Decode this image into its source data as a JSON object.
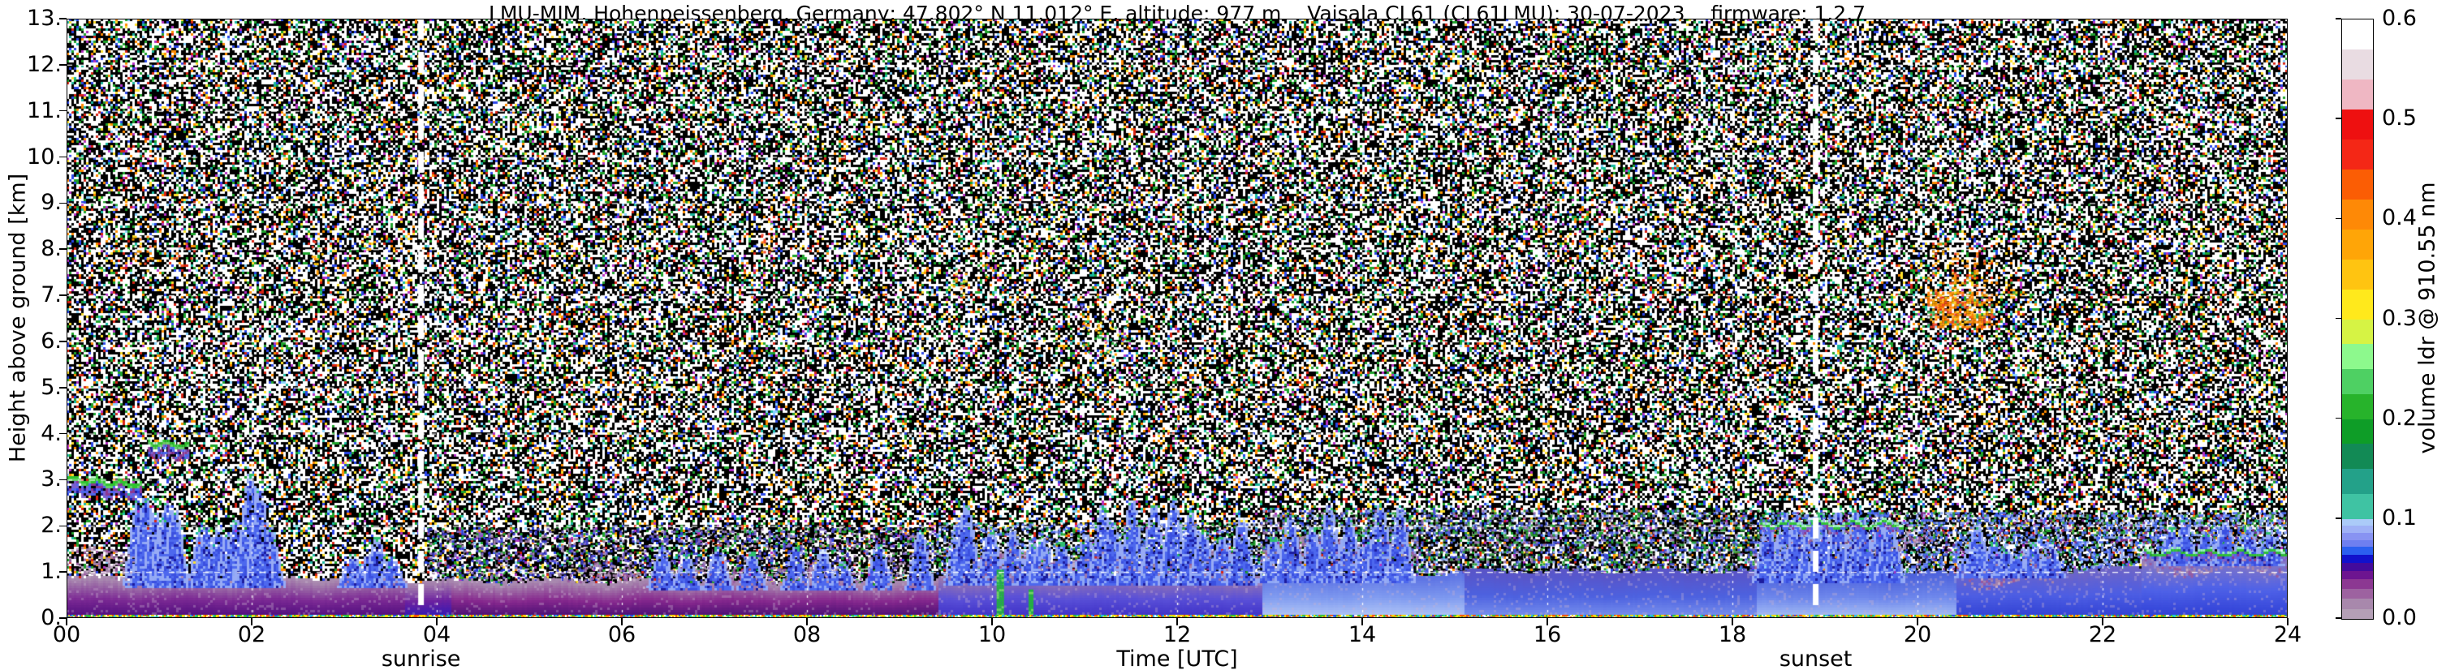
{
  "title": "LMU-MIM, Hohenpeissenberg, Germany; 47.802° N 11.012° E, altitude: 977 m    Vaisala CL61 (CL61LMU): 30-07-2023    firmware: 1.2.7",
  "axes": {
    "y_label": "Height above ground [km]",
    "x_label": "Time [UTC]",
    "y_ticks": [
      "0.",
      "1.",
      "2.",
      "3.",
      "4.",
      "5.",
      "6.",
      "7.",
      "8.",
      "9.",
      "10.",
      "11.",
      "12.",
      "13."
    ],
    "x_ticks": [
      "00",
      "02",
      "04",
      "06",
      "08",
      "10",
      "12",
      "14",
      "16",
      "18",
      "20",
      "22",
      "24"
    ],
    "sunrise_label": "sunrise",
    "sunset_label": "sunset"
  },
  "colorbar": {
    "label": "volume ldr @ 910.55 nm",
    "ticks": [
      "0.0",
      "0.1",
      "0.2",
      "0.3",
      "0.4",
      "0.5",
      "0.6"
    ],
    "vmin": 0.0,
    "vmax": 0.6,
    "segments": [
      {
        "v0": 0.0,
        "v1": 0.01,
        "c": "#b49fb6"
      },
      {
        "v0": 0.01,
        "v1": 0.02,
        "c": "#a888ac"
      },
      {
        "v0": 0.02,
        "v1": 0.03,
        "c": "#9d62a0"
      },
      {
        "v0": 0.03,
        "v1": 0.04,
        "c": "#8c3892"
      },
      {
        "v0": 0.04,
        "v1": 0.048,
        "c": "#6d1590"
      },
      {
        "v0": 0.048,
        "v1": 0.056,
        "c": "#430b9c"
      },
      {
        "v0": 0.056,
        "v1": 0.064,
        "c": "#1111cc"
      },
      {
        "v0": 0.064,
        "v1": 0.072,
        "c": "#2b5ff0"
      },
      {
        "v0": 0.072,
        "v1": 0.079,
        "c": "#6f7ff0"
      },
      {
        "v0": 0.079,
        "v1": 0.086,
        "c": "#8893f2"
      },
      {
        "v0": 0.086,
        "v1": 0.093,
        "c": "#9fb1f6"
      },
      {
        "v0": 0.093,
        "v1": 0.1,
        "c": "#abcbf8"
      },
      {
        "v0": 0.1,
        "v1": 0.125,
        "c": "#3fc3a3"
      },
      {
        "v0": 0.125,
        "v1": 0.15,
        "c": "#23a189"
      },
      {
        "v0": 0.15,
        "v1": 0.175,
        "c": "#128a55"
      },
      {
        "v0": 0.175,
        "v1": 0.2,
        "c": "#0e9d27"
      },
      {
        "v0": 0.2,
        "v1": 0.225,
        "c": "#27b32b"
      },
      {
        "v0": 0.225,
        "v1": 0.25,
        "c": "#4ed063"
      },
      {
        "v0": 0.25,
        "v1": 0.275,
        "c": "#8df98d"
      },
      {
        "v0": 0.275,
        "v1": 0.3,
        "c": "#d6f344"
      },
      {
        "v0": 0.3,
        "v1": 0.33,
        "c": "#ffe91c"
      },
      {
        "v0": 0.33,
        "v1": 0.36,
        "c": "#ffc411"
      },
      {
        "v0": 0.36,
        "v1": 0.39,
        "c": "#ffa507"
      },
      {
        "v0": 0.39,
        "v1": 0.42,
        "c": "#fe8906"
      },
      {
        "v0": 0.42,
        "v1": 0.45,
        "c": "#fb5d04"
      },
      {
        "v0": 0.45,
        "v1": 0.48,
        "c": "#f42716"
      },
      {
        "v0": 0.48,
        "v1": 0.51,
        "c": "#ee1010"
      },
      {
        "v0": 0.51,
        "v1": 0.54,
        "c": "#efb7c3"
      },
      {
        "v0": 0.54,
        "v1": 0.57,
        "c": "#e9dce2"
      },
      {
        "v0": 0.57,
        "v1": 0.6,
        "c": "#ffffff"
      }
    ]
  },
  "chart_data": {
    "type": "heatmap",
    "title": "LMU-MIM, Hohenpeissenberg, Germany; 47.802° N 11.012° E, altitude: 977 m    Vaisala CL61 (CL61LMU): 30-07-2023    firmware: 1.2.7",
    "xlabel": "Time [UTC]",
    "ylabel": "Height above ground [km]",
    "colorbar_label": "volume ldr @ 910.55 nm",
    "x_range": [
      0,
      24
    ],
    "y_range": [
      0,
      13
    ],
    "value_range": [
      0.0,
      0.6
    ],
    "sunrise_utc": 3.83,
    "sunset_utc": 18.9,
    "grid": {
      "x_step": 2,
      "y_step": 1,
      "color": "#ffffff",
      "style": "dashed"
    },
    "noise": {
      "white": 0.38,
      "black": 0.42,
      "palette": [
        {
          "c": "#1fa32c",
          "w": 0.26
        },
        {
          "c": "#2a46e8",
          "w": 0.17
        },
        {
          "c": "#d92313",
          "w": 0.13
        },
        {
          "c": "#ff8c00",
          "w": 0.12
        },
        {
          "c": "#ffe12b",
          "w": 0.1
        },
        {
          "c": "#19b9a0",
          "w": 0.09
        },
        {
          "c": "#b62fc4",
          "w": 0.07
        },
        {
          "c": "#8ad4ff",
          "w": 0.06
        }
      ]
    },
    "overlays": [
      {
        "t0": 3.9,
        "t1": 9.4,
        "h0": 0.7,
        "h1": 1.95,
        "cov": 0.42,
        "colors": [
          {
            "c": "#000000",
            "w": 0.36
          },
          {
            "c": "#3a3acc",
            "w": 0.25
          },
          {
            "c": "#7d64c8",
            "w": 0.14
          },
          {
            "c": "#a583ac",
            "w": 0.12
          },
          {
            "c": "#1fa32c",
            "w": 0.13
          }
        ]
      },
      {
        "t0": 9.4,
        "t1": 12.9,
        "h0": 0.9,
        "h1": 2.05,
        "cov": 0.38,
        "colors": [
          {
            "c": "#000000",
            "w": 0.3
          },
          {
            "c": "#4d68ee",
            "w": 0.3
          },
          {
            "c": "#8fa8f5",
            "w": 0.2
          },
          {
            "c": "#1fa32c",
            "w": 0.2
          }
        ]
      },
      {
        "t0": 12.9,
        "t1": 18.3,
        "h0": 0.95,
        "h1": 2.35,
        "cov": 0.45,
        "colors": [
          {
            "c": "#000000",
            "w": 0.3
          },
          {
            "c": "#4455dd",
            "w": 0.28
          },
          {
            "c": "#2f9e3c",
            "w": 0.22
          },
          {
            "c": "#9a6fae",
            "w": 0.1
          },
          {
            "c": "#8fa8f5",
            "w": 0.1
          }
        ]
      },
      {
        "t0": 18.3,
        "t1": 24,
        "h0": 0.8,
        "h1": 2.3,
        "cov": 0.5,
        "colors": [
          {
            "c": "#4d6ef0",
            "w": 0.38
          },
          {
            "c": "#000000",
            "w": 0.22
          },
          {
            "c": "#8fa8f5",
            "w": 0.2
          },
          {
            "c": "#2f9e3c",
            "w": 0.12
          },
          {
            "c": "#7c2f90",
            "w": 0.08
          }
        ]
      }
    ],
    "boundary_layer": {
      "segments": [
        {
          "t0": 0,
          "t1": 3.65,
          "h": 0.85,
          "cb": "#47077a",
          "cm": "#7d2b95",
          "ct": "#aa8bb0"
        },
        {
          "t0": 3.65,
          "t1": 4.15,
          "h": 0.8,
          "cb": "#2417b8",
          "cm": "#6d21a0",
          "ct": "#a786ae"
        },
        {
          "t0": 4.15,
          "t1": 9.4,
          "h": 0.78,
          "cb": "#3c0a6e",
          "cm": "#86288e",
          "ct": "#a98ab0"
        },
        {
          "t0": 9.4,
          "t1": 12.9,
          "h": 0.9,
          "cb": "#3a2cc4",
          "cm": "#5a50d8",
          "ct": "#9a79ae"
        },
        {
          "t0": 12.9,
          "t1": 15.1,
          "h": 0.95,
          "cb": "#b9cdf8",
          "cm": "#7f9af0",
          "ct": "#5e74e4"
        },
        {
          "t0": 15.1,
          "t1": 18.25,
          "h": 1.0,
          "cb": "#7f97f0",
          "cm": "#4d62e0",
          "ct": "#5a55c8"
        },
        {
          "t0": 18.25,
          "t1": 20.4,
          "h": 0.95,
          "cb": "#aec6f6",
          "cm": "#6e87ec",
          "ct": "#4d62dc"
        },
        {
          "t0": 20.4,
          "t1": 22.4,
          "h": 1.05,
          "cb": "#2e3ed2",
          "cm": "#4d5ee4",
          "ct": "#6e65c8"
        },
        {
          "t0": 22.4,
          "t1": 24.01,
          "h": 1.3,
          "cb": "#2c3cd4",
          "cm": "#4f62e8",
          "ct": "#8a79c0"
        }
      ],
      "caps": [
        {
          "t0": 0,
          "t1": 0.9,
          "h0": 0.85,
          "h1": 1.45,
          "cov": 0.4
        },
        {
          "t0": 5.2,
          "t1": 9.4,
          "h0": 0.78,
          "h1": 1.1,
          "cov": 0.3
        },
        {
          "t0": 9.5,
          "t1": 12.7,
          "h0": 0.95,
          "h1": 1.35,
          "cov": 0.5
        },
        {
          "t0": 12.9,
          "t1": 14.6,
          "h0": 1.15,
          "h1": 1.7,
          "cov": 0.55
        },
        {
          "t0": 18.3,
          "t1": 20.2,
          "h0": 1.5,
          "h1": 1.85,
          "cov": 0.55
        },
        {
          "t0": 20.5,
          "t1": 21.5,
          "h0": 0.75,
          "h1": 1.3,
          "cov": 0.45
        },
        {
          "t0": 22.4,
          "t1": 24,
          "h0": 1.0,
          "h1": 1.35,
          "cov": 0.5
        }
      ],
      "cap_colors": [
        {
          "c": "#a583ac",
          "w": 0.5
        },
        {
          "c": "#9a5a9f",
          "w": 0.3
        },
        {
          "c": "#c4aac6",
          "w": 0.2
        }
      ]
    },
    "layer_lines": [
      {
        "t0": 0,
        "t1": 0.8,
        "ha": 3.03,
        "hb": 2.9
      },
      {
        "t0": 0.88,
        "t1": 1.32,
        "ha": 3.82,
        "hb": 3.76
      }
    ],
    "green_caps": [
      {
        "t0": 18.3,
        "t1": 19.85,
        "h": 2.02
      },
      {
        "t0": 22.45,
        "t1": 24,
        "h": 1.4
      }
    ],
    "plumes": [
      {
        "t0": 0.75,
        "t1": 1.2,
        "n": 6,
        "hmin": 2.0,
        "hmax": 2.6
      },
      {
        "t0": 1.4,
        "t1": 2.25,
        "n": 9,
        "hmin": 1.4,
        "hmax": 2.1
      },
      {
        "t0": 1.95,
        "t1": 2.15,
        "n": 2,
        "hmin": 2.7,
        "hmax": 3.2
      },
      {
        "t0": 3.05,
        "t1": 3.55,
        "n": 4,
        "hmin": 1.2,
        "hmax": 1.75
      },
      {
        "t0": 6.3,
        "t1": 9.3,
        "n": 9,
        "hmin": 1.2,
        "hmax": 1.9
      },
      {
        "t0": 9.5,
        "t1": 12.8,
        "n": 17,
        "hmin": 1.5,
        "hmax": 2.7
      },
      {
        "t0": 13.0,
        "t1": 14.5,
        "n": 8,
        "hmin": 1.7,
        "hmax": 2.55
      },
      {
        "t0": 18.35,
        "t1": 19.8,
        "n": 10,
        "hmin": 2.0,
        "hmax": 2.35
      },
      {
        "t0": 20.45,
        "t1": 21.5,
        "n": 7,
        "hmin": 1.3,
        "hmax": 2.05
      },
      {
        "t0": 22.6,
        "t1": 23.9,
        "n": 6,
        "hmin": 1.55,
        "hmax": 2.1
      }
    ],
    "plume_colors": [
      {
        "c": "#4d68ee",
        "w": 0.45
      },
      {
        "c": "#3b50e0",
        "w": 0.25
      },
      {
        "c": "#8fa8f5",
        "w": 0.2
      },
      {
        "c": "#1c1c9e",
        "w": 0.1
      }
    ],
    "green_columns": [
      {
        "t": 10.08,
        "h": 1.05,
        "w": 0.06
      },
      {
        "t": 10.42,
        "h": 0.62,
        "w": 0.05
      }
    ],
    "clouds": [
      {
        "t0": 0.68,
        "t1": 0.97,
        "h0": 7.5,
        "h1": 8.45,
        "d": 0.5,
        "colors": [
          {
            "c": "#ff9d00",
            "w": 0.3
          },
          {
            "c": "#ff7b00",
            "w": 0.22
          },
          {
            "c": "#f2432b",
            "w": 0.2
          },
          {
            "c": "#ffc40a",
            "w": 0.15
          },
          {
            "c": "#ffffff",
            "w": 0.13
          }
        ]
      },
      {
        "t0": 1.1,
        "t1": 1.38,
        "h0": 7.45,
        "h1": 8.3,
        "d": 0.3,
        "colors": [
          {
            "c": "#f2432b",
            "w": 0.45
          },
          {
            "c": "#ff7b00",
            "w": 0.25
          },
          {
            "c": "#ffc40a",
            "w": 0.15
          },
          {
            "c": "#ffffff",
            "w": 0.15
          }
        ]
      },
      {
        "t0": 2.62,
        "t1": 2.77,
        "h0": 7.35,
        "h1": 8.6,
        "d": 0.5,
        "colors": [
          {
            "c": "#ff9d00",
            "w": 0.4
          },
          {
            "c": "#ff7b00",
            "w": 0.25
          },
          {
            "c": "#f2432b",
            "w": 0.15
          },
          {
            "c": "#ffc40a",
            "w": 0.2
          }
        ]
      },
      {
        "t0": 3.16,
        "t1": 3.34,
        "h0": 7.95,
        "h1": 8.55,
        "d": 0.6,
        "colors": [
          {
            "c": "#2fae4c",
            "w": 0.35
          },
          {
            "c": "#19b9a0",
            "w": 0.15
          },
          {
            "c": "#ff9d00",
            "w": 0.25
          },
          {
            "c": "#f2432b",
            "w": 0.1
          },
          {
            "c": "#ffe12b",
            "w": 0.15
          }
        ]
      },
      {
        "t0": 7.4,
        "t1": 7.63,
        "h0": 7.75,
        "h1": 8.7,
        "d": 0.6,
        "colors": [
          {
            "c": "#ff9d00",
            "w": 0.28
          },
          {
            "c": "#ff7b00",
            "w": 0.22
          },
          {
            "c": "#f2432b",
            "w": 0.18
          },
          {
            "c": "#ffffff",
            "w": 0.18
          },
          {
            "c": "#ffc40a",
            "w": 0.14
          }
        ]
      },
      {
        "t0": 9.55,
        "t1": 9.73,
        "h0": 6.9,
        "h1": 7.75,
        "d": 0.45,
        "colors": [
          {
            "c": "#ff9d00",
            "w": 0.35
          },
          {
            "c": "#2fae4c",
            "w": 0.25
          },
          {
            "c": "#ff7b00",
            "w": 0.2
          },
          {
            "c": "#ffe12b",
            "w": 0.2
          }
        ]
      },
      {
        "t0": 9.8,
        "t1": 9.97,
        "h0": 7.15,
        "h1": 7.95,
        "d": 0.4,
        "colors": [
          {
            "c": "#ff9d00",
            "w": 0.4
          },
          {
            "c": "#ff7b00",
            "w": 0.25
          },
          {
            "c": "#ffe12b",
            "w": 0.2
          },
          {
            "c": "#2fae4c",
            "w": 0.15
          }
        ]
      },
      {
        "t0": 10.85,
        "t1": 11.55,
        "h0": 5.4,
        "h1": 6.85,
        "d": 0.22,
        "colors": [
          {
            "c": "#ff9d00",
            "w": 0.3
          },
          {
            "c": "#ffe12b",
            "w": 0.25
          },
          {
            "c": "#2fae4c",
            "w": 0.25
          },
          {
            "c": "#f2432b",
            "w": 0.1
          },
          {
            "c": "#19b9a0",
            "w": 0.1
          }
        ]
      },
      {
        "t0": 10.88,
        "t1": 11.02,
        "h0": 6.5,
        "h1": 6.85,
        "d": 0.5,
        "colors": [
          {
            "c": "#3d4fd8",
            "w": 0.45
          },
          {
            "c": "#6b2fa0",
            "w": 0.3
          },
          {
            "c": "#8888ee",
            "w": 0.25
          }
        ]
      },
      {
        "t0": 17.72,
        "t1": 18.05,
        "h0": 8.8,
        "h1": 10.05,
        "d": 0.18,
        "colors": [
          {
            "c": "#ff9d00",
            "w": 0.4
          },
          {
            "c": "#ffc40a",
            "w": 0.3
          },
          {
            "c": "#f2432b",
            "w": 0.15
          },
          {
            "c": "#2fae4c",
            "w": 0.15
          }
        ]
      },
      {
        "t0": 19.0,
        "t1": 19.12,
        "h0": 10.08,
        "h1": 10.45,
        "d": 0.55,
        "colors": [
          {
            "c": "#f2432b",
            "w": 0.45
          },
          {
            "c": "#ff7b00",
            "w": 0.3
          },
          {
            "c": "#ffc40a",
            "w": 0.25
          }
        ]
      },
      {
        "t0": 19.95,
        "t1": 20.9,
        "h0": 6.3,
        "h1": 8.45,
        "d": 0.4,
        "core": {
          "t0": 20.1,
          "t1": 20.8,
          "h0": 6.3,
          "h1": 7.1,
          "d": 0.8
        },
        "colors": [
          {
            "c": "#ff9d00",
            "w": 0.3
          },
          {
            "c": "#ff7b00",
            "w": 0.25
          },
          {
            "c": "#f2432b",
            "w": 0.17
          },
          {
            "c": "#ffc40a",
            "w": 0.15
          },
          {
            "c": "#2fae4c",
            "w": 0.07
          },
          {
            "c": "#ffffff",
            "w": 0.06
          }
        ]
      },
      {
        "t0": 20.95,
        "t1": 21.1,
        "h0": 6.9,
        "h1": 7.35,
        "d": 0.5,
        "colors": [
          {
            "c": "#2fae4c",
            "w": 0.4
          },
          {
            "c": "#ffe12b",
            "w": 0.3
          },
          {
            "c": "#ff9d00",
            "w": 0.3
          }
        ]
      },
      {
        "t0": 22.7,
        "t1": 22.92,
        "h0": 6.3,
        "h1": 7.35,
        "d": 0.45,
        "colors": [
          {
            "c": "#ff9d00",
            "w": 0.35
          },
          {
            "c": "#ff7b00",
            "w": 0.25
          },
          {
            "c": "#2fae4c",
            "w": 0.25
          },
          {
            "c": "#f2432b",
            "w": 0.15
          }
        ]
      }
    ],
    "bottom_strip_colors": [
      {
        "c": "#ffe000",
        "w": 0.25
      },
      {
        "c": "#ff4d00",
        "w": 0.2
      },
      {
        "c": "#2fc42f",
        "w": 0.2
      },
      {
        "c": "#21c8e8",
        "w": 0.15
      },
      {
        "c": "#2a46e8",
        "w": 0.1
      },
      {
        "c": "#ffffff",
        "w": 0.1
      }
    ]
  }
}
